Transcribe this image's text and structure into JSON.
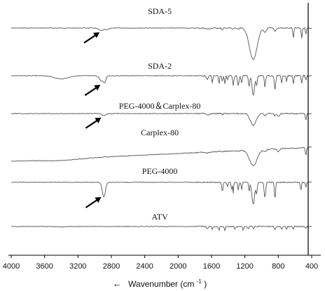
{
  "chart_data": {
    "type": "line",
    "title": "",
    "xlabel": "Wavenumber (cm⁻¹)",
    "xlabel_main": "Wavenumber (cm",
    "xlabel_sup": "-1",
    "xlabel_close": ")",
    "xlabel_arrow": "←",
    "ylabel": "",
    "x_reversed": true,
    "xlim": [
      4000,
      400
    ],
    "x_ticks": [
      4000,
      3600,
      3200,
      2800,
      2400,
      2000,
      1600,
      1200,
      800,
      400
    ],
    "x_tick_labels": [
      "4000",
      "3600",
      "3200",
      "2800",
      "2400",
      "2000",
      "1600",
      "1200",
      "800",
      "400"
    ],
    "grid": false,
    "legend": "none",
    "series": [
      {
        "name": "SDA-5",
        "arrow_at": 2900,
        "features": [
          [
            2920,
            5,
            30
          ],
          [
            2850,
            3,
            18
          ],
          [
            1640,
            2,
            25
          ],
          [
            1470,
            4,
            8
          ],
          [
            1350,
            3,
            8
          ],
          [
            1280,
            3,
            10
          ],
          [
            1100,
            60,
            45
          ],
          [
            960,
            8,
            15
          ],
          [
            840,
            6,
            12
          ],
          [
            620,
            20,
            6
          ],
          [
            520,
            20,
            6
          ],
          [
            470,
            12,
            5
          ]
        ]
      },
      {
        "name": "SDA-2",
        "arrow_at": 2890,
        "features": [
          [
            3400,
            6,
            80
          ],
          [
            2920,
            10,
            22
          ],
          [
            2880,
            12,
            14
          ],
          [
            1650,
            8,
            10
          ],
          [
            1590,
            14,
            6
          ],
          [
            1510,
            16,
            6
          ],
          [
            1470,
            12,
            6
          ],
          [
            1440,
            16,
            6
          ],
          [
            1410,
            10,
            5
          ],
          [
            1340,
            18,
            7
          ],
          [
            1280,
            20,
            8
          ],
          [
            1240,
            14,
            7
          ],
          [
            1150,
            20,
            8
          ],
          [
            1100,
            38,
            14
          ],
          [
            1060,
            18,
            8
          ],
          [
            960,
            22,
            7
          ],
          [
            840,
            28,
            8
          ],
          [
            760,
            14,
            6
          ],
          [
            700,
            12,
            5
          ],
          [
            620,
            16,
            6
          ],
          [
            520,
            16,
            6
          ],
          [
            470,
            10,
            5
          ]
        ]
      },
      {
        "name": "PEG-4000＆Carplex-80",
        "arrow_at": 2880,
        "features": [
          [
            2890,
            4,
            20
          ],
          [
            1640,
            2,
            20
          ],
          [
            1470,
            2,
            8
          ],
          [
            1100,
            22,
            35
          ],
          [
            960,
            4,
            12
          ],
          [
            840,
            4,
            10
          ],
          [
            800,
            5,
            14
          ],
          [
            470,
            14,
            6
          ]
        ]
      },
      {
        "name": "Carplex-80",
        "arrow_at": null,
        "features": [
          [
            3400,
            3,
            220
          ],
          [
            1640,
            2,
            20
          ],
          [
            1100,
            30,
            45
          ],
          [
            960,
            4,
            15
          ],
          [
            800,
            6,
            15
          ],
          [
            470,
            16,
            6
          ]
        ]
      },
      {
        "name": "PEG-4000",
        "arrow_at": 2880,
        "features": [
          [
            2890,
            28,
            18
          ],
          [
            1470,
            18,
            7
          ],
          [
            1410,
            8,
            6
          ],
          [
            1360,
            16,
            5
          ],
          [
            1340,
            20,
            5
          ],
          [
            1280,
            16,
            6
          ],
          [
            1240,
            14,
            6
          ],
          [
            1150,
            18,
            6
          ],
          [
            1100,
            42,
            16
          ],
          [
            1060,
            22,
            7
          ],
          [
            960,
            30,
            9
          ],
          [
            840,
            32,
            7
          ],
          [
            530,
            16,
            6
          ],
          [
            470,
            10,
            5
          ]
        ]
      },
      {
        "name": "ATV",
        "arrow_at": null,
        "features": [
          [
            3400,
            1,
            40
          ],
          [
            1650,
            5,
            8
          ],
          [
            1590,
            6,
            6
          ],
          [
            1510,
            8,
            6
          ],
          [
            1440,
            7,
            6
          ],
          [
            1320,
            6,
            7
          ],
          [
            1220,
            7,
            7
          ],
          [
            1160,
            5,
            7
          ],
          [
            1100,
            4,
            7
          ],
          [
            840,
            7,
            8
          ],
          [
            760,
            6,
            6
          ],
          [
            700,
            6,
            5
          ],
          [
            620,
            5,
            6
          ],
          [
            470,
            4,
            5
          ]
        ]
      }
    ]
  }
}
